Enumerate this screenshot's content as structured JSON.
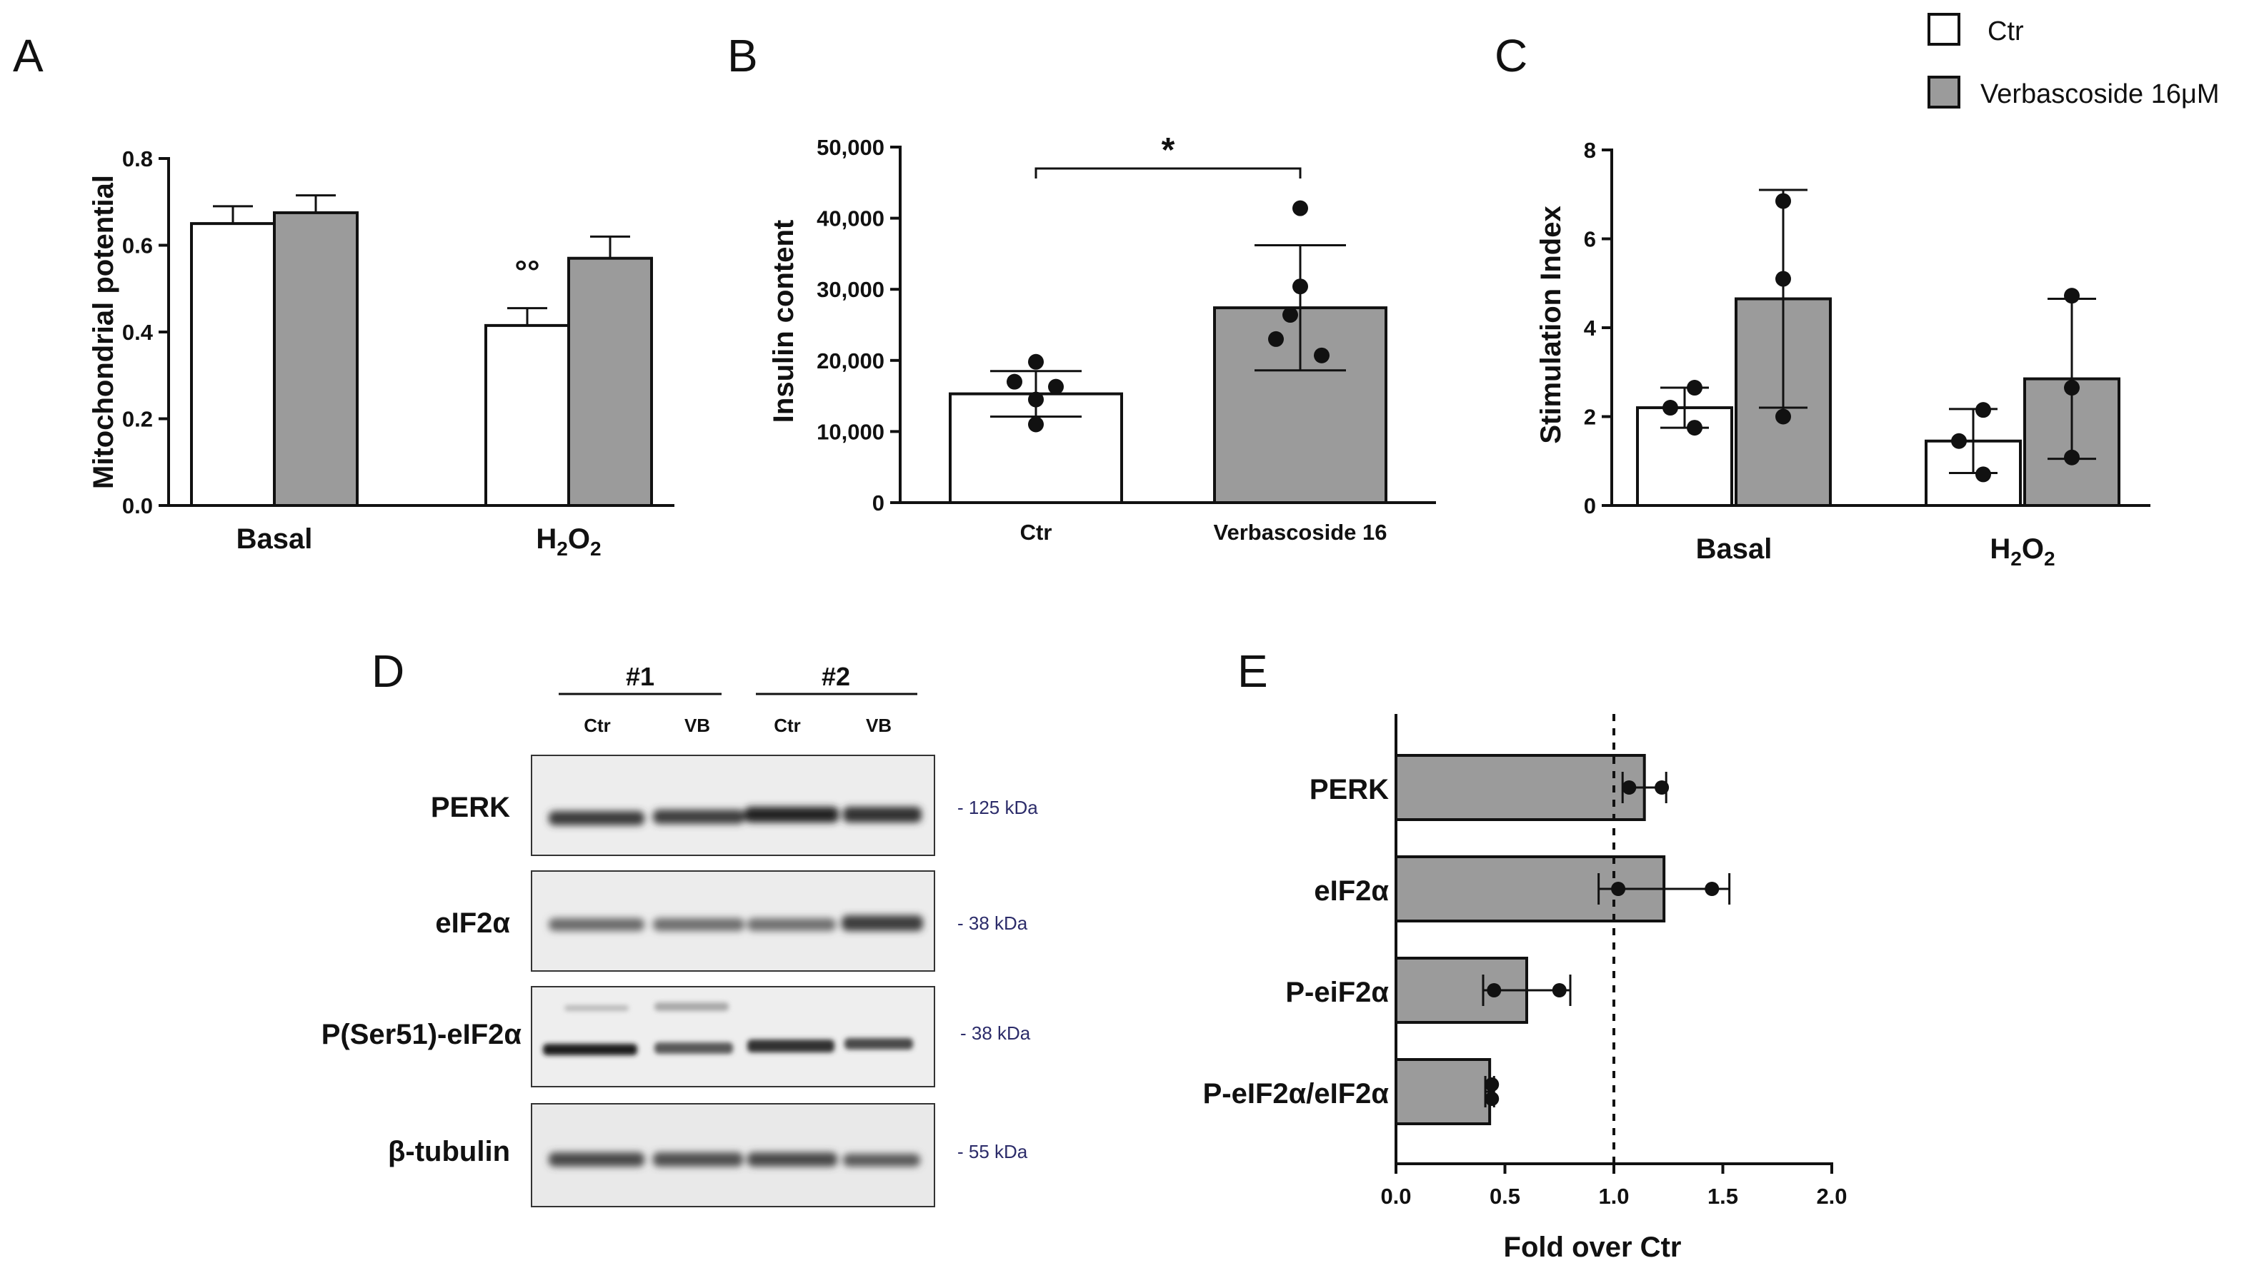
{
  "legend": {
    "placement": "top-right",
    "items": [
      {
        "label": "Ctr",
        "color": "#ffffff"
      },
      {
        "label": "Verbascoside 16μM",
        "color": "#9b9b9b"
      }
    ]
  },
  "chart_data": [
    {
      "panel": "A",
      "type": "bar",
      "ylabel": "Mitochondrial potential",
      "ylim": [
        0,
        0.8
      ],
      "yticks": [
        "0.0",
        "0.2",
        "0.4",
        "0.6",
        "0.8"
      ],
      "categories": [
        "Basal",
        "H2O2"
      ],
      "category_labels": [
        {
          "main": "Basal",
          "sub": "",
          "after": ""
        },
        {
          "main": "H",
          "sub": "2",
          "after": "O",
          "sub2": "2"
        }
      ],
      "series": [
        {
          "name": "Ctr",
          "values": [
            0.65,
            0.415
          ],
          "errors": [
            0.04,
            0.04
          ]
        },
        {
          "name": "Verbascoside 16μM",
          "values": [
            0.675,
            0.57
          ],
          "errors": [
            0.04,
            0.05
          ]
        }
      ],
      "annotation": "°°"
    },
    {
      "panel": "B",
      "type": "bar",
      "ylabel": "Insulin content",
      "ylim": [
        0,
        50000
      ],
      "yticks": [
        "0",
        "10,000",
        "20,000",
        "30,000",
        "40,000",
        "50,000"
      ],
      "categories": [
        "Ctr",
        "Verbascoside 16"
      ],
      "values": [
        15300,
        27400
      ],
      "errors": [
        3200,
        8800
      ],
      "points": [
        [
          19800,
          17000,
          16300,
          14500,
          11000
        ],
        [
          41400,
          30400,
          26400,
          23000,
          20700
        ]
      ],
      "significance": "*"
    },
    {
      "panel": "C",
      "type": "bar",
      "ylabel": "Stimulation Index",
      "ylim": [
        0,
        8
      ],
      "yticks": [
        "0",
        "2",
        "4",
        "6",
        "8"
      ],
      "categories": [
        "Basal",
        "H2O2"
      ],
      "category_labels": [
        {
          "main": "Basal",
          "sub": "",
          "after": ""
        },
        {
          "main": "H",
          "sub": "2",
          "after": "O",
          "sub2": "2"
        }
      ],
      "series": [
        {
          "name": "Ctr",
          "values": [
            2.2,
            1.45
          ],
          "errors": [
            0.45,
            0.72
          ],
          "points": [
            [
              2.65,
              2.2,
              1.75
            ],
            [
              2.15,
              1.45,
              0.7
            ]
          ]
        },
        {
          "name": "Verbascoside 16μM",
          "values": [
            4.65,
            2.85
          ],
          "errors": [
            2.45,
            1.8
          ],
          "points": [
            [
              6.85,
              5.1,
              2.0
            ],
            [
              4.72,
              2.65,
              1.08
            ]
          ]
        }
      ]
    },
    {
      "panel": "E",
      "type": "bar",
      "orientation": "horizontal",
      "xlabel": "Fold over Ctr",
      "xlim": [
        0,
        2.0
      ],
      "xticks": [
        "0.0",
        "0.5",
        "1.0",
        "1.5",
        "2.0"
      ],
      "reference_line": 1.0,
      "categories": [
        "PERK",
        "eIF2α",
        "P-eiF2α",
        "P-eIF2α/eIF2α"
      ],
      "values": [
        1.14,
        1.23,
        0.6,
        0.43
      ],
      "errors": [
        0.1,
        0.3,
        0.2,
        0.02
      ],
      "points": [
        [
          1.07,
          1.22
        ],
        [
          1.02,
          1.45
        ],
        [
          0.45,
          0.75
        ],
        [
          0.44,
          0.44
        ]
      ]
    }
  ],
  "panel_letters": [
    "A",
    "B",
    "C",
    "D",
    "E"
  ],
  "blot": {
    "panel": "D",
    "replicates": [
      "#1",
      "#2"
    ],
    "lanes": [
      "Ctr",
      "VB",
      "Ctr",
      "VB"
    ],
    "rows": [
      {
        "label": "PERK",
        "kda": "- 125 kDa"
      },
      {
        "label": "eIF2α",
        "kda": "- 38 kDa"
      },
      {
        "label": "P(Ser51)-eIF2α",
        "kda": "- 38 kDa"
      },
      {
        "label": "β-tubulin",
        "kda": "- 55 kDa"
      }
    ]
  }
}
